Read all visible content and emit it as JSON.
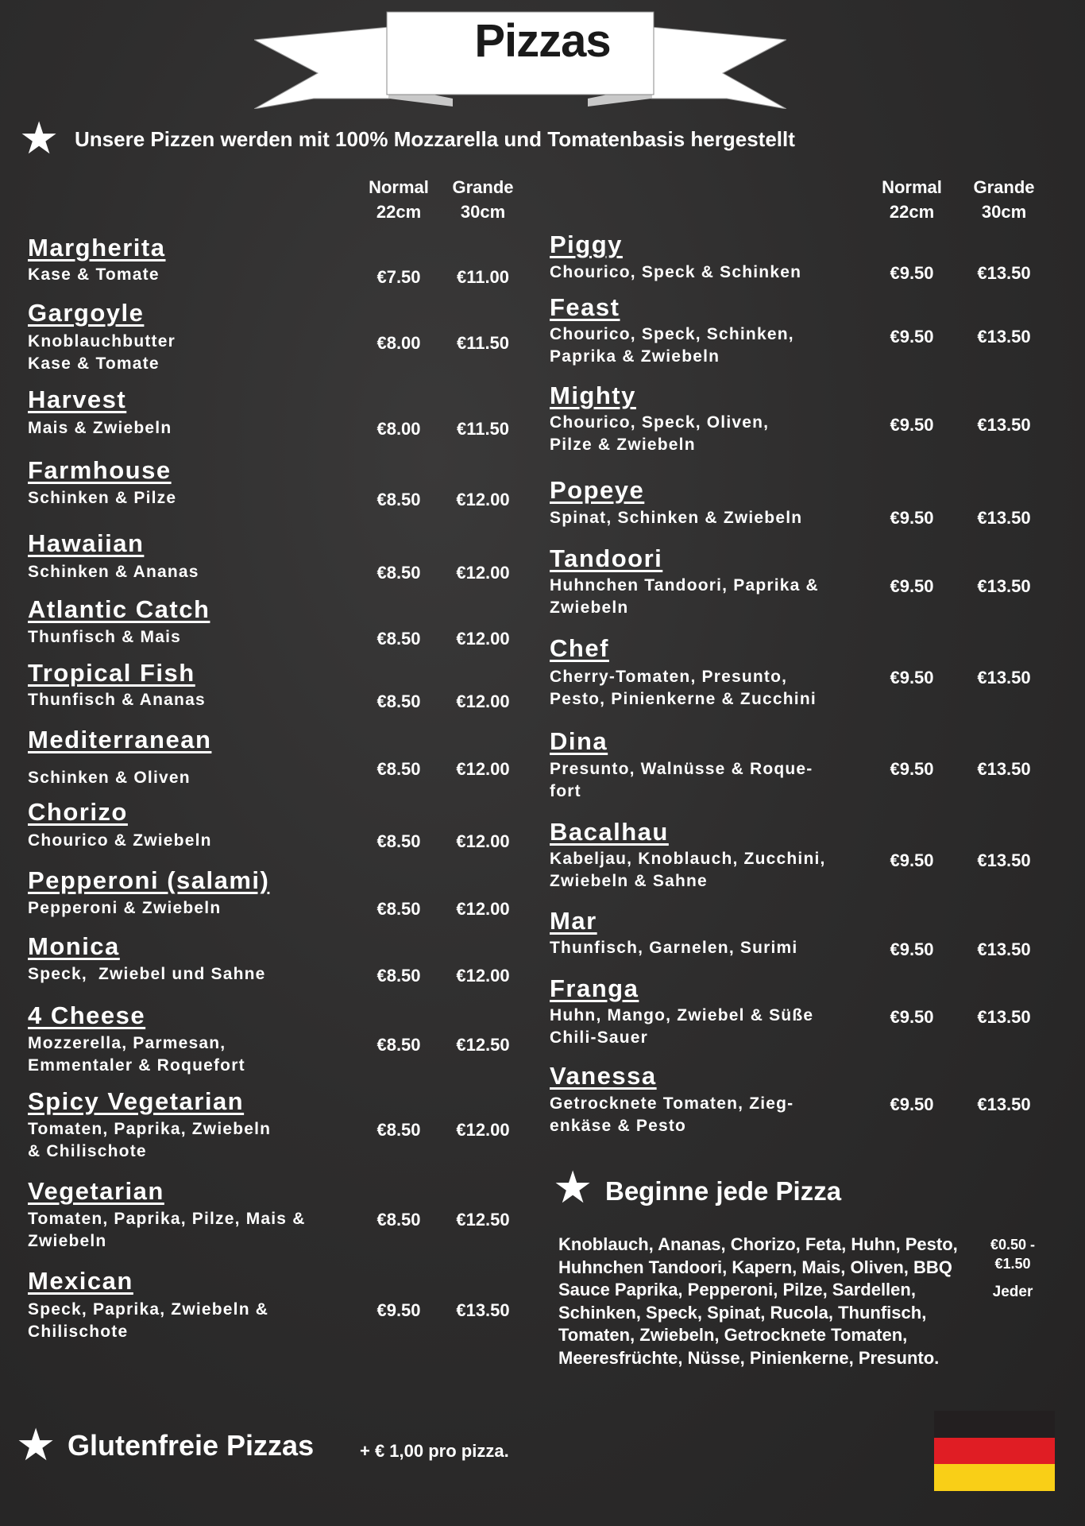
{
  "title": "Pizzas",
  "intro": "Unsere Pizzen werden mit 100% Mozzarella und Tomatenbasis hergestellt",
  "size_headers": {
    "normal": "Normal",
    "normal_size": "22cm",
    "grande": "Grande",
    "grande_size": "30cm"
  },
  "left_column": [
    {
      "name": "Margherita",
      "desc": "Kase & Tomate",
      "normal": "€7.50",
      "grande": "€11.00"
    },
    {
      "name": "Gargoyle",
      "desc": "Knoblauchbutter\nKase & Tomate",
      "normal": "€8.00",
      "grande": "€11.50"
    },
    {
      "name": "Harvest",
      "desc": "Mais & Zwiebeln",
      "normal": "€8.00",
      "grande": "€11.50"
    },
    {
      "name": "Farmhouse",
      "desc": "Schinken & Pilze",
      "normal": "€8.50",
      "grande": "€12.00"
    },
    {
      "name": "Hawaiian",
      "desc": "Schinken & Ananas",
      "normal": "€8.50",
      "grande": "€12.00"
    },
    {
      "name": "Atlantic Catch",
      "desc": "Thunfisch & Mais",
      "normal": "€8.50",
      "grande": "€12.00"
    },
    {
      "name": "Tropical Fish",
      "desc": "Thunfisch & Ananas",
      "normal": "€8.50",
      "grande": "€12.00"
    },
    {
      "name": "Mediterranean",
      "desc": "Schinken & Oliven",
      "normal": "€8.50",
      "grande": "€12.00"
    },
    {
      "name": "Chorizo",
      "desc": "Chourico & Zwiebeln",
      "normal": "€8.50",
      "grande": "€12.00"
    },
    {
      "name": "Pepperoni (salami)",
      "desc": "Pepperoni & Zwiebeln",
      "normal": "€8.50",
      "grande": "€12.00"
    },
    {
      "name": "Monica",
      "desc": "Speck,  Zwiebel und Sahne",
      "normal": "€8.50",
      "grande": "€12.00"
    },
    {
      "name": "4 Cheese",
      "desc": "Mozzerella, Parmesan,\nEmmentaler & Roquefort",
      "normal": "€8.50",
      "grande": "€12.50"
    },
    {
      "name": "Spicy Vegetarian",
      "desc": "Tomaten, Paprika, Zwiebeln\n& Chilischote",
      "normal": "€8.50",
      "grande": "€12.00"
    },
    {
      "name": "Vegetarian",
      "desc": "Tomaten, Paprika, Pilze, Mais &\nZwiebeln",
      "normal": "€8.50",
      "grande": "€12.50"
    },
    {
      "name": "Mexican",
      "desc": "Speck, Paprika, Zwiebeln &\nChilischote",
      "normal": "€9.50",
      "grande": "€13.50"
    }
  ],
  "right_column": [
    {
      "name": "Piggy",
      "desc": "Chourico, Speck & Schinken",
      "normal": "€9.50",
      "grande": "€13.50"
    },
    {
      "name": "Feast",
      "desc": "Chourico, Speck, Schinken,\nPaprika & Zwiebeln",
      "normal": "€9.50",
      "grande": "€13.50"
    },
    {
      "name": "Mighty",
      "desc": "Chourico, Speck, Oliven,\nPilze & Zwiebeln",
      "normal": "€9.50",
      "grande": "€13.50"
    },
    {
      "name": "Popeye",
      "desc": "Spinat, Schinken & Zwiebeln",
      "normal": "€9.50",
      "grande": "€13.50"
    },
    {
      "name": "Tandoori",
      "desc": "Huhnchen Tandoori, Paprika &\nZwiebeln",
      "normal": "€9.50",
      "grande": "€13.50"
    },
    {
      "name": "Chef",
      "desc": "Cherry-Tomaten, Presunto,\nPesto, Pinienkerne & Zucchini",
      "normal": "€9.50",
      "grande": "€13.50"
    },
    {
      "name": "Dina",
      "desc": "Presunto, Walnüsse & Roque-\nfort",
      "normal": "€9.50",
      "grande": "€13.50"
    },
    {
      "name": "Bacalhau",
      "desc": "Kabeljau, Knoblauch, Zucchini,\nZwiebeln & Sahne",
      "normal": "€9.50",
      "grande": "€13.50"
    },
    {
      "name": "Mar",
      "desc": "Thunfisch, Garnelen, Surimi",
      "normal": "€9.50",
      "grande": "€13.50"
    },
    {
      "name": "Franga",
      "desc": "Huhn, Mango, Zwiebel & Süße\nChili-Sauer",
      "normal": "€9.50",
      "grande": "€13.50"
    },
    {
      "name": "Vanessa",
      "desc": "Getrocknete Tomaten, Zieg-\nenkäse & Pesto",
      "normal": "€9.50",
      "grande": "€13.50"
    }
  ],
  "toppings": {
    "heading": "Beginne jede Pizza",
    "list": "Knoblauch, Ananas, Chorizo, Feta, Huhn, Pesto, Huhnchen Tandoori, Kapern, Mais, Oliven, BBQ Sauce Paprika, Pepperoni, Pilze, Sardellen, Schinken, Speck, Spinat, Rucola, Thunfisch, Tomaten, Zwiebeln, Getrocknete Tomaten, Meeresfrüchte, Nüsse, Pinienkerne, Presunto.",
    "price": "€0.50 - €1.50",
    "price_note": "Jeder"
  },
  "gluten_free": {
    "heading": "Glutenfreie Pizzas",
    "note": "+ € 1,00 pro pizza."
  },
  "flag": {
    "icon": "germany-flag-icon",
    "colors": [
      "#231f20",
      "#e01d24",
      "#f9cf17"
    ]
  },
  "icons": {
    "star": "star-icon"
  }
}
